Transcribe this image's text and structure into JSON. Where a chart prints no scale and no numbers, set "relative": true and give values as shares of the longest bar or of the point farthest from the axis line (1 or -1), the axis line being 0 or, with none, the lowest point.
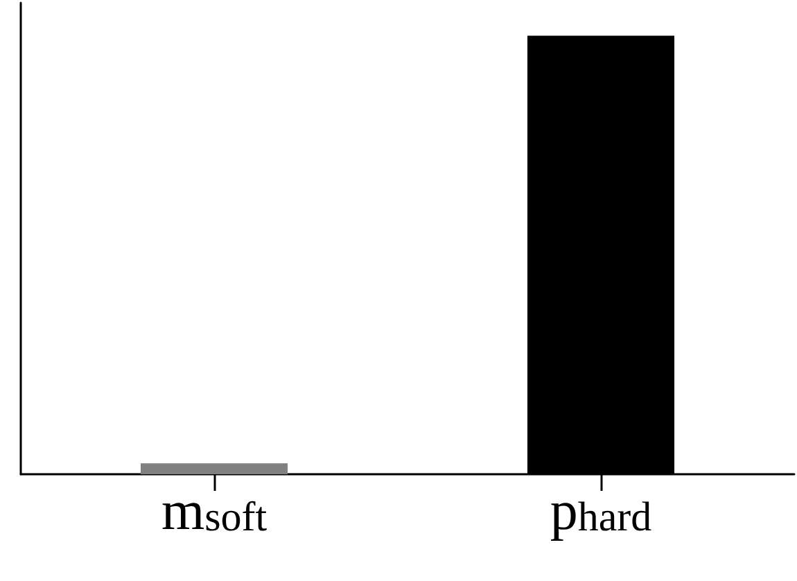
{
  "chart_data": {
    "type": "bar",
    "categories": [
      "m$_{soft}$",
      "p$_{hard}$"
    ],
    "values": [
      0.025,
      1
    ],
    "colors": [
      "#808080",
      "#000000"
    ],
    "relative": true,
    "grid": false
  }
}
